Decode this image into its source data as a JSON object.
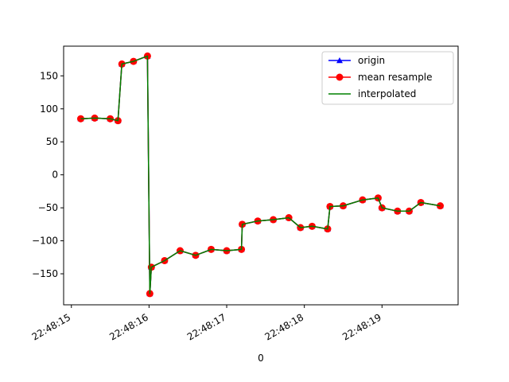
{
  "chart_data": {
    "type": "line",
    "title": "",
    "xlabel": "0",
    "ylabel": "",
    "x_ticks": [
      "22:48:15",
      "22:48:16",
      "22:48:17",
      "22:48:18",
      "22:48:19"
    ],
    "y_ticks": [
      150,
      100,
      50,
      0,
      -50,
      -100,
      -150
    ],
    "xlim": [
      "22:48:14.900",
      "22:48:19.980"
    ],
    "ylim": [
      -197,
      195
    ],
    "grid": false,
    "legend_position": "top-right",
    "series": [
      {
        "name": "origin",
        "color": "#0000ff",
        "marker": "triangle-up",
        "x": [
          "22:48:15.12",
          "22:48:15.30",
          "22:48:15.50",
          "22:48:15.60",
          "22:48:15.65",
          "22:48:15.80",
          "22:48:15.98",
          "22:48:16.01",
          "22:48:16.03",
          "22:48:16.20",
          "22:48:16.40",
          "22:48:16.60",
          "22:48:16.80",
          "22:48:17.00",
          "22:48:17.19",
          "22:48:17.20",
          "22:48:17.40",
          "22:48:17.60",
          "22:48:17.80",
          "22:48:17.95",
          "22:48:18.10",
          "22:48:18.30",
          "22:48:18.33",
          "22:48:18.50",
          "22:48:18.75",
          "22:48:18.95",
          "22:48:19.00",
          "22:48:19.20",
          "22:48:19.35",
          "22:48:19.50",
          "22:48:19.75"
        ],
        "y": [
          85,
          86,
          85,
          82,
          168,
          172,
          180,
          -180,
          -140,
          -130,
          -115,
          -122,
          -113,
          -115,
          -113,
          -75,
          -70,
          -68,
          -65,
          -80,
          -78,
          -82,
          -48,
          -47,
          -38,
          -35,
          -50,
          -55,
          -55,
          -42,
          -47
        ]
      },
      {
        "name": "mean resample",
        "color": "#ff0000",
        "marker": "circle",
        "x": [
          "22:48:15.12",
          "22:48:15.30",
          "22:48:15.50",
          "22:48:15.60",
          "22:48:15.65",
          "22:48:15.80",
          "22:48:15.98",
          "22:48:16.01",
          "22:48:16.03",
          "22:48:16.20",
          "22:48:16.40",
          "22:48:16.60",
          "22:48:16.80",
          "22:48:17.00",
          "22:48:17.19",
          "22:48:17.20",
          "22:48:17.40",
          "22:48:17.60",
          "22:48:17.80",
          "22:48:17.95",
          "22:48:18.10",
          "22:48:18.30",
          "22:48:18.33",
          "22:48:18.50",
          "22:48:18.75",
          "22:48:18.95",
          "22:48:19.00",
          "22:48:19.20",
          "22:48:19.35",
          "22:48:19.50",
          "22:48:19.75"
        ],
        "y": [
          85,
          86,
          85,
          82,
          168,
          172,
          180,
          -180,
          -140,
          -130,
          -115,
          -122,
          -113,
          -115,
          -113,
          -75,
          -70,
          -68,
          -65,
          -80,
          -78,
          -82,
          -48,
          -47,
          -38,
          -35,
          -50,
          -55,
          -55,
          -42,
          -47
        ]
      },
      {
        "name": "interpolated",
        "color": "#008000",
        "marker": "none",
        "x": [
          "22:48:15.12",
          "22:48:15.30",
          "22:48:15.50",
          "22:48:15.60",
          "22:48:15.65",
          "22:48:15.80",
          "22:48:15.98",
          "22:48:16.01",
          "22:48:16.03",
          "22:48:16.20",
          "22:48:16.40",
          "22:48:16.60",
          "22:48:16.80",
          "22:48:17.00",
          "22:48:17.19",
          "22:48:17.20",
          "22:48:17.40",
          "22:48:17.60",
          "22:48:17.80",
          "22:48:17.95",
          "22:48:18.10",
          "22:48:18.30",
          "22:48:18.33",
          "22:48:18.50",
          "22:48:18.75",
          "22:48:18.95",
          "22:48:19.00",
          "22:48:19.20",
          "22:48:19.35",
          "22:48:19.50",
          "22:48:19.75"
        ],
        "y": [
          85,
          86,
          85,
          82,
          168,
          172,
          180,
          -180,
          -140,
          -130,
          -115,
          -122,
          -113,
          -115,
          -113,
          -75,
          -70,
          -68,
          -65,
          -80,
          -78,
          -82,
          -48,
          -47,
          -38,
          -35,
          -50,
          -55,
          -55,
          -42,
          -47
        ]
      }
    ]
  }
}
